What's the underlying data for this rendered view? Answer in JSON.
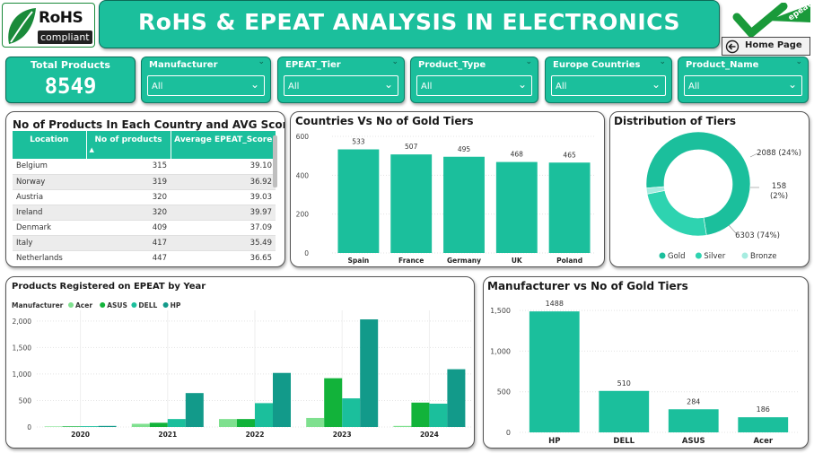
{
  "header": {
    "title": "RoHS & EPEAT ANALYSIS IN ELECTRONICS",
    "rohs_logo": {
      "line1": "RoHS",
      "line2": "compliant"
    },
    "epeat_logo": "epeat",
    "home_button": "Home Page"
  },
  "kpi": {
    "label": "Total Products",
    "value": "8549"
  },
  "slicers": [
    {
      "label": "Manufacturer",
      "value": "All"
    },
    {
      "label": "EPEAT_Tier",
      "value": "All"
    },
    {
      "label": "Product_Type",
      "value": "All"
    },
    {
      "label": "Europe Countries",
      "value": "All"
    },
    {
      "label": "Product_Name",
      "value": "All"
    }
  ],
  "country_table": {
    "title": "No of Products In Each Country and AVG Score",
    "columns": [
      "Location",
      "No of products",
      "Average EPEAT_Score"
    ],
    "rows": [
      [
        "Belgium",
        "315",
        "39.10"
      ],
      [
        "Norway",
        "319",
        "36.92"
      ],
      [
        "Austria",
        "320",
        "39.03"
      ],
      [
        "Ireland",
        "320",
        "39.97"
      ],
      [
        "Denmark",
        "409",
        "37.09"
      ],
      [
        "Italy",
        "417",
        "35.49"
      ],
      [
        "Netherlands",
        "447",
        "36.65"
      ]
    ]
  },
  "colors": {
    "primary": "#1bbf9c",
    "silver": "#2ed3b0",
    "bronze": "#a6ece0",
    "acer": "#7fe08f",
    "asus": "#12b33a",
    "dell": "#1bbf9c",
    "hp": "#129a8a"
  },
  "chart_data": [
    {
      "type": "bar",
      "title": "Countries Vs No of Gold Tiers",
      "categories": [
        "Spain",
        "France",
        "Germany",
        "UK",
        "Poland"
      ],
      "values": [
        533,
        507,
        495,
        468,
        465
      ],
      "ylim": [
        0,
        600
      ],
      "yticks": [
        "0",
        "200",
        "400",
        "600"
      ]
    },
    {
      "type": "pie",
      "title": "Distribution of Tiers",
      "categories": [
        "Gold",
        "Silver",
        "Bronze"
      ],
      "values": [
        6303,
        2088,
        158
      ],
      "labels": [
        "6303 (74%)",
        "2088 (24%)",
        "158",
        "(2%)"
      ]
    },
    {
      "type": "bar",
      "title": "Products Registered on EPEAT by Year",
      "legend_title": "Manufacturer",
      "categories": [
        "2020",
        "2021",
        "2022",
        "2023",
        "2024"
      ],
      "series": [
        {
          "name": "Acer",
          "values": [
            10,
            60,
            150,
            170,
            20
          ]
        },
        {
          "name": "ASUS",
          "values": [
            12,
            80,
            150,
            920,
            460
          ]
        },
        {
          "name": "DELL",
          "values": [
            15,
            150,
            450,
            540,
            440
          ]
        },
        {
          "name": "HP",
          "values": [
            20,
            640,
            1020,
            2030,
            1090
          ]
        }
      ],
      "ylim": [
        0,
        2200
      ],
      "yticks": [
        "0",
        "500",
        "1,000",
        "1,500",
        "2,000"
      ]
    },
    {
      "type": "bar",
      "title": "Manufacturer vs No of Gold Tiers",
      "categories": [
        "HP",
        "DELL",
        "ASUS",
        "Acer"
      ],
      "values": [
        1488,
        510,
        284,
        186
      ],
      "ylim": [
        0,
        1600
      ],
      "yticks": [
        "0",
        "500",
        "1,000",
        "1,500"
      ]
    }
  ]
}
